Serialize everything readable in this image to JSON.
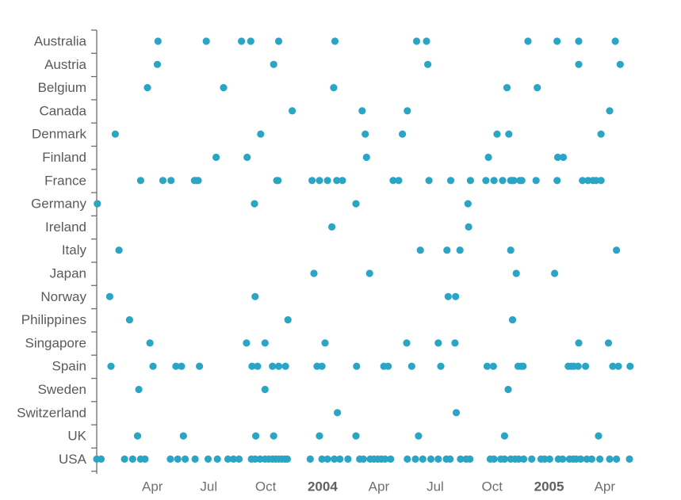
{
  "chart_data": {
    "type": "scatter",
    "title": "",
    "xlabel": "",
    "ylabel": "",
    "x_axis": {
      "type": "date",
      "range": [
        "2003-01-01",
        "2005-06-12"
      ],
      "tick_labels": [
        {
          "date": "2003-04-01",
          "label": "Apr",
          "bold": false
        },
        {
          "date": "2003-07-01",
          "label": "Jul",
          "bold": false
        },
        {
          "date": "2003-10-01",
          "label": "Oct",
          "bold": false
        },
        {
          "date": "2004-01-01",
          "label": "2004",
          "bold": true
        },
        {
          "date": "2004-04-01",
          "label": "Apr",
          "bold": false
        },
        {
          "date": "2004-07-01",
          "label": "Jul",
          "bold": false
        },
        {
          "date": "2004-10-01",
          "label": "Oct",
          "bold": false
        },
        {
          "date": "2005-01-01",
          "label": "2005",
          "bold": true
        },
        {
          "date": "2005-04-01",
          "label": "Apr",
          "bold": false
        }
      ]
    },
    "grid": false,
    "marker_color": "#2aa5c5",
    "categories": [
      "Australia",
      "Austria",
      "Belgium",
      "Canada",
      "Denmark",
      "Finland",
      "France",
      "Germany",
      "Ireland",
      "Italy",
      "Japan",
      "Norway",
      "Philippines",
      "Singapore",
      "Spain",
      "Sweden",
      "Switzerland",
      "UK",
      "USA"
    ],
    "series": [
      {
        "category": "Australia",
        "dates": [
          "2003-04-10",
          "2003-06-27",
          "2003-08-23",
          "2003-09-07",
          "2003-10-22",
          "2004-01-21",
          "2004-06-01",
          "2004-06-17",
          "2004-11-28",
          "2005-01-14",
          "2005-02-18",
          "2005-04-18"
        ]
      },
      {
        "category": "Austria",
        "dates": [
          "2003-04-09",
          "2003-10-14",
          "2004-06-19",
          "2005-02-18",
          "2005-04-26"
        ]
      },
      {
        "category": "Belgium",
        "dates": [
          "2003-03-24",
          "2003-07-25",
          "2004-01-19",
          "2004-10-25",
          "2004-12-13"
        ]
      },
      {
        "category": "Canada",
        "dates": [
          "2003-11-13",
          "2004-03-05",
          "2004-05-17",
          "2005-04-09"
        ]
      },
      {
        "category": "Denmark",
        "dates": [
          "2003-01-31",
          "2003-09-23",
          "2004-03-10",
          "2004-05-09",
          "2004-10-09",
          "2004-10-28",
          "2005-03-26"
        ]
      },
      {
        "category": "Finland",
        "dates": [
          "2003-07-13",
          "2003-09-01",
          "2004-03-12",
          "2004-09-25",
          "2005-01-15",
          "2005-01-24"
        ]
      },
      {
        "category": "France",
        "dates": [
          "2003-03-13",
          "2003-04-18",
          "2003-05-01",
          "2003-06-08",
          "2003-06-11",
          "2003-06-14",
          "2003-10-19",
          "2003-10-21",
          "2003-12-15",
          "2003-12-27",
          "2004-01-09",
          "2004-01-24",
          "2004-02-02",
          "2004-04-24",
          "2004-05-03",
          "2004-06-21",
          "2004-07-26",
          "2004-08-27",
          "2004-09-21",
          "2004-10-04",
          "2004-10-18",
          "2004-10-31",
          "2004-11-03",
          "2004-11-05",
          "2004-11-15",
          "2004-11-18",
          "2004-12-11",
          "2005-01-14",
          "2005-02-24",
          "2005-03-05",
          "2005-03-13",
          "2005-03-18",
          "2005-03-26"
        ]
      },
      {
        "category": "Germany",
        "dates": [
          "2003-01-02",
          "2003-09-13",
          "2004-02-24",
          "2004-08-23"
        ]
      },
      {
        "category": "Ireland",
        "dates": [
          "2004-01-16",
          "2004-08-24"
        ]
      },
      {
        "category": "Italy",
        "dates": [
          "2003-02-06",
          "2004-06-07",
          "2004-07-20",
          "2004-08-10",
          "2004-10-31",
          "2005-04-20"
        ]
      },
      {
        "category": "Japan",
        "dates": [
          "2003-12-18",
          "2004-03-17",
          "2004-11-09",
          "2005-01-10"
        ]
      },
      {
        "category": "Norway",
        "dates": [
          "2003-01-22",
          "2003-09-14",
          "2004-07-22",
          "2004-08-03"
        ]
      },
      {
        "category": "Philippines",
        "dates": [
          "2003-02-23",
          "2003-11-06",
          "2004-11-03"
        ]
      },
      {
        "category": "Singapore",
        "dates": [
          "2003-03-28",
          "2003-08-31",
          "2003-09-30",
          "2004-01-05",
          "2004-05-16",
          "2004-07-06",
          "2004-08-02",
          "2005-02-18",
          "2005-04-07"
        ]
      },
      {
        "category": "Spain",
        "dates": [
          "2003-01-24",
          "2003-04-02",
          "2003-05-09",
          "2003-05-18",
          "2003-06-16",
          "2003-09-09",
          "2003-09-18",
          "2003-10-12",
          "2003-10-22",
          "2003-11-02",
          "2003-12-23",
          "2003-12-31",
          "2004-02-25",
          "2004-04-09",
          "2004-04-16",
          "2004-05-24",
          "2004-07-10",
          "2004-09-23",
          "2004-10-03",
          "2004-11-12",
          "2004-11-17",
          "2004-11-20",
          "2005-02-01",
          "2005-02-06",
          "2005-02-10",
          "2005-02-17",
          "2005-03-01",
          "2005-04-14",
          "2005-04-23",
          "2005-05-12"
        ]
      },
      {
        "category": "Sweden",
        "dates": [
          "2003-03-10",
          "2003-09-30",
          "2004-10-27"
        ]
      },
      {
        "category": "Switzerland",
        "dates": [
          "2004-01-25",
          "2004-08-04"
        ]
      },
      {
        "category": "UK",
        "dates": [
          "2003-03-08",
          "2003-05-21",
          "2003-09-15",
          "2003-10-14",
          "2003-12-27",
          "2004-02-24",
          "2004-06-04",
          "2004-10-21",
          "2005-03-22"
        ]
      },
      {
        "category": "USA",
        "dates": [
          "2003-01-01",
          "2003-01-08",
          "2003-02-15",
          "2003-02-28",
          "2003-03-13",
          "2003-03-20",
          "2003-04-30",
          "2003-05-12",
          "2003-05-24",
          "2003-06-09",
          "2003-06-30",
          "2003-07-15",
          "2003-08-01",
          "2003-08-10",
          "2003-08-19",
          "2003-09-08",
          "2003-09-14",
          "2003-09-22",
          "2003-09-30",
          "2003-10-06",
          "2003-10-12",
          "2003-10-17",
          "2003-10-22",
          "2003-10-27",
          "2003-11-01",
          "2003-11-05",
          "2003-12-12",
          "2003-12-31",
          "2004-01-09",
          "2004-01-20",
          "2004-01-29",
          "2004-02-11",
          "2004-03-01",
          "2004-03-07",
          "2004-03-18",
          "2004-03-24",
          "2004-03-30",
          "2004-04-05",
          "2004-04-11",
          "2004-04-20",
          "2004-05-17",
          "2004-05-30",
          "2004-06-11",
          "2004-06-24",
          "2004-07-06",
          "2004-07-19",
          "2004-07-25",
          "2004-08-11",
          "2004-08-20",
          "2004-08-26",
          "2004-09-28",
          "2004-10-04",
          "2004-10-15",
          "2004-10-21",
          "2004-10-31",
          "2004-11-07",
          "2004-11-13",
          "2004-11-21",
          "2004-12-04",
          "2004-12-19",
          "2004-12-25",
          "2005-01-02",
          "2005-01-16",
          "2005-01-23",
          "2005-02-03",
          "2005-02-09",
          "2005-02-14",
          "2005-02-21",
          "2005-03-03",
          "2005-03-11",
          "2005-03-24",
          "2005-04-09",
          "2005-04-20",
          "2005-05-11"
        ]
      }
    ]
  }
}
